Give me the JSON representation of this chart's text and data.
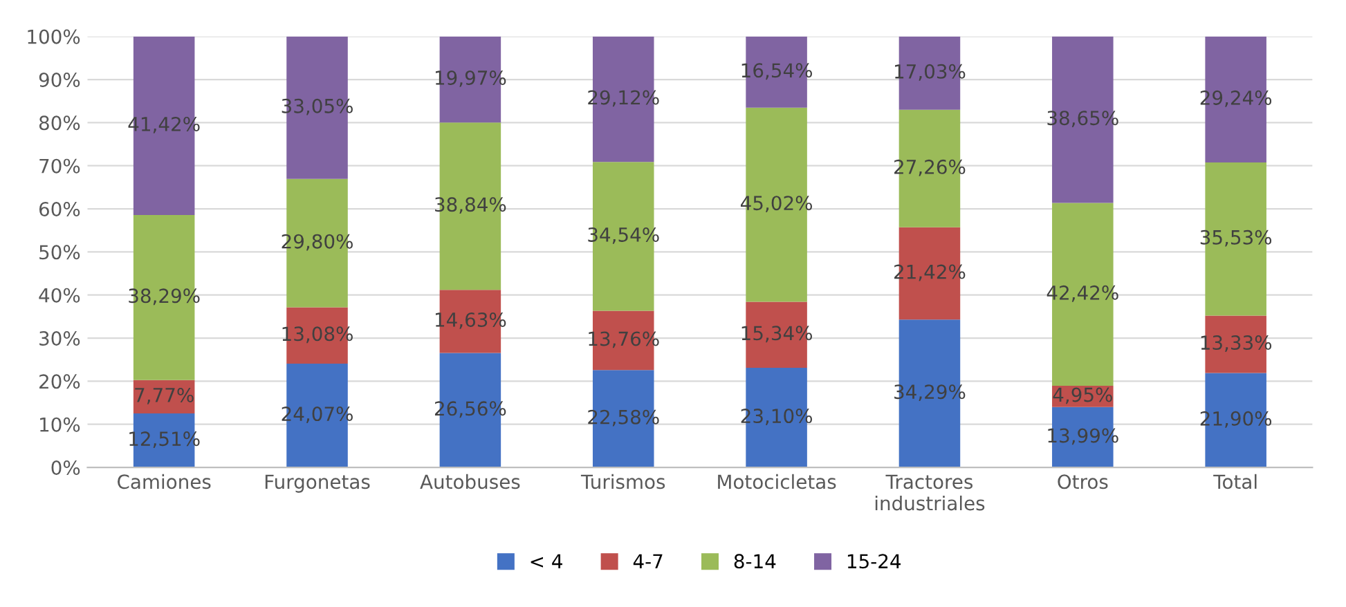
{
  "chart_data": {
    "type": "bar",
    "stacked": true,
    "categories": [
      "Camiones",
      "Furgonetas",
      "Autobuses",
      "Turismos",
      "Motocicletas",
      "Tractores\nindustriales",
      "Otros",
      "Total"
    ],
    "series": [
      {
        "name": "< 4",
        "color": "#4472c4",
        "values": [
          12.51,
          24.07,
          26.56,
          22.58,
          23.1,
          34.29,
          13.99,
          21.9
        ],
        "value_labels": [
          "12,51%",
          "24,07%",
          "26,56%",
          "22,58%",
          "23,10%",
          "34,29%",
          "13,99%",
          "21,90%"
        ]
      },
      {
        "name": "4-7",
        "color": "#c0504d",
        "values": [
          7.77,
          13.08,
          14.63,
          13.76,
          15.34,
          21.42,
          4.95,
          13.33
        ],
        "value_labels": [
          "7,77%",
          "13,08%",
          "14,63%",
          "13,76%",
          "15,34%",
          "21,42%",
          "4,95%",
          "13,33%"
        ]
      },
      {
        "name": "8-14",
        "color": "#9bbb59",
        "values": [
          38.29,
          29.8,
          38.84,
          34.54,
          45.02,
          27.26,
          42.42,
          35.53
        ],
        "value_labels": [
          "38,29%",
          "29,80%",
          "38,84%",
          "34,54%",
          "45,02%",
          "27,26%",
          "42,42%",
          "35,53%"
        ]
      },
      {
        "name": "15-24",
        "color": "#8064a2",
        "values": [
          41.42,
          33.05,
          19.97,
          29.12,
          16.54,
          17.03,
          38.65,
          29.24
        ],
        "value_labels": [
          "41,42%",
          "33,05%",
          "19,97%",
          "29,12%",
          "16,54%",
          "17,03%",
          "38,65%",
          "29,24%"
        ]
      }
    ],
    "ylim": [
      0,
      100
    ],
    "yticks": [
      {
        "value": 0,
        "label": "0%"
      },
      {
        "value": 10,
        "label": "10%"
      },
      {
        "value": 20,
        "label": "20%"
      },
      {
        "value": 30,
        "label": "30%"
      },
      {
        "value": 40,
        "label": "40%"
      },
      {
        "value": 50,
        "label": "50%"
      },
      {
        "value": 60,
        "label": "60%"
      },
      {
        "value": 70,
        "label": "70%"
      },
      {
        "value": 80,
        "label": "80%"
      },
      {
        "value": 90,
        "label": "90%"
      },
      {
        "value": 100,
        "label": "100%"
      }
    ],
    "grid": "y",
    "legend": "bottom"
  }
}
